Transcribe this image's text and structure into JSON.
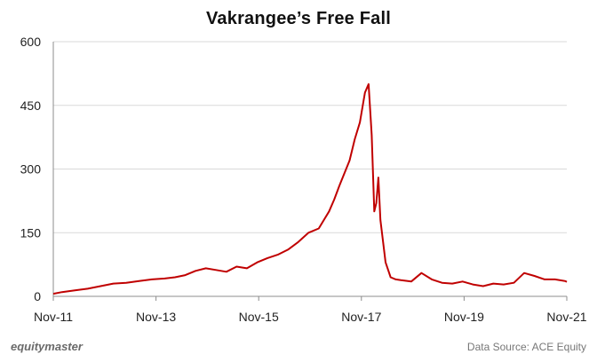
{
  "chart_data": {
    "type": "line",
    "title": "Vakrangee’s  Free Fall",
    "xlabel": "",
    "ylabel": "",
    "x_ticks": [
      "Nov-11",
      "Nov-13",
      "Nov-15",
      "Nov-17",
      "Nov-19",
      "Nov-21"
    ],
    "ylim": [
      0,
      600
    ],
    "y_ticks": [
      0,
      150,
      300,
      450,
      600
    ],
    "grid": "horizontal",
    "series": [
      {
        "color": "#c00000",
        "x": [
          2011.83,
          2012.0,
          2012.25,
          2012.5,
          2012.75,
          2013.0,
          2013.25,
          2013.5,
          2013.75,
          2014.0,
          2014.2,
          2014.4,
          2014.6,
          2014.8,
          2015.0,
          2015.2,
          2015.4,
          2015.6,
          2015.8,
          2016.0,
          2016.2,
          2016.4,
          2016.6,
          2016.8,
          2017.0,
          2017.1,
          2017.2,
          2017.3,
          2017.4,
          2017.5,
          2017.6,
          2017.7,
          2017.8,
          2017.9,
          2017.97,
          2018.03,
          2018.08,
          2018.12,
          2018.16,
          2018.2,
          2018.25,
          2018.3,
          2018.4,
          2018.5,
          2018.6,
          2018.8,
          2019.0,
          2019.2,
          2019.4,
          2019.6,
          2019.8,
          2020.0,
          2020.2,
          2020.4,
          2020.6,
          2020.8,
          2021.0,
          2021.2,
          2021.4,
          2021.6,
          2021.8,
          2021.83
        ],
        "values": [
          6,
          10,
          14,
          18,
          24,
          30,
          32,
          36,
          40,
          42,
          45,
          50,
          60,
          66,
          62,
          58,
          70,
          66,
          80,
          90,
          98,
          110,
          128,
          150,
          160,
          180,
          200,
          228,
          260,
          290,
          320,
          370,
          410,
          480,
          500,
          380,
          200,
          220,
          280,
          180,
          130,
          80,
          45,
          40,
          38,
          35,
          55,
          40,
          32,
          30,
          35,
          28,
          24,
          30,
          28,
          32,
          55,
          48,
          40,
          40,
          36,
          34
        ]
      }
    ]
  },
  "footer": {
    "brand": "equitymaster",
    "source": "Data Source: ACE Equity"
  }
}
